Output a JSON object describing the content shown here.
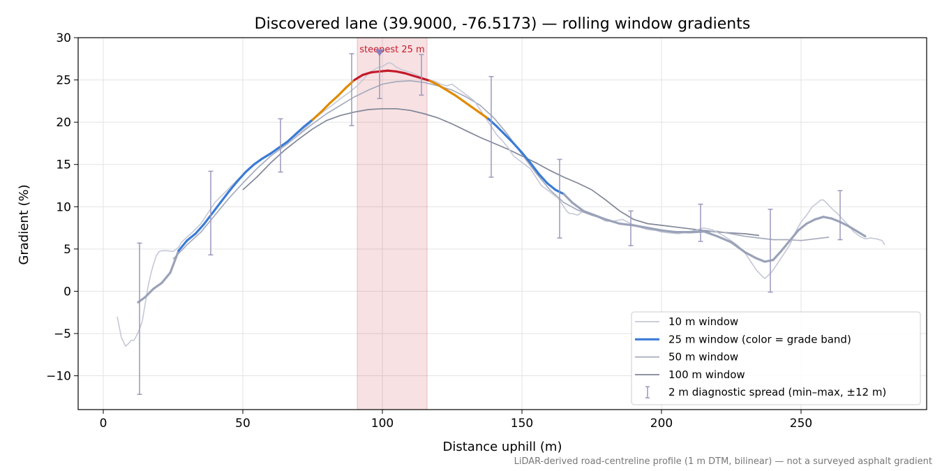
{
  "chart_data": {
    "type": "line",
    "title": "Discovered lane (39.9000, -76.5173) — rolling window gradients",
    "xlabel": "Distance uphill (m)",
    "ylabel": "Gradient (%)",
    "xlim": [
      -9,
      295
    ],
    "ylim": [
      -14,
      30
    ],
    "xticks": [
      0,
      50,
      100,
      150,
      200,
      250
    ],
    "xtick_labels": [
      "0",
      "50",
      "100",
      "150",
      "200",
      "250"
    ],
    "yticks": [
      -10,
      -5,
      0,
      5,
      10,
      15,
      20,
      25,
      30
    ],
    "ytick_labels": [
      "−10",
      "−5",
      "0",
      "5",
      "10",
      "15",
      "20",
      "25",
      "30"
    ],
    "grid": true,
    "legend_position": "lower-right",
    "highlight": {
      "x_start": 91,
      "x_end": 116,
      "label": "steepest 25 m",
      "marker_x": 99,
      "marker_y": 28.2
    },
    "footer": "LiDAR-derived road-centreline profile (1 m DTM, bilinear) — not a surveyed asphalt gradient",
    "series": [
      {
        "name": "10 m window",
        "color": "#c5c8d6",
        "x": [
          5,
          6.5,
          8,
          9,
          10,
          11,
          12,
          13,
          14,
          15,
          16,
          17,
          18,
          19,
          20,
          21,
          22,
          23,
          25,
          27,
          28,
          30,
          32,
          35,
          38,
          40,
          43,
          46,
          49,
          52,
          55,
          58,
          61,
          64,
          67,
          70,
          73,
          76,
          79,
          82,
          85,
          88,
          91,
          93,
          95,
          97,
          98,
          100,
          101,
          102,
          103,
          104,
          105,
          107,
          109,
          111,
          113,
          115,
          117,
          119,
          121,
          123,
          125,
          127,
          129,
          131,
          133,
          135,
          137,
          139,
          141,
          143,
          145,
          147,
          149,
          151,
          153,
          155,
          157,
          159,
          161,
          163,
          164,
          165,
          166,
          167,
          168,
          170,
          172,
          174,
          177,
          180,
          183,
          186,
          189,
          192,
          195,
          198,
          200,
          203,
          206,
          209,
          212,
          215,
          218,
          221,
          224,
          227,
          230,
          232,
          234,
          236,
          237,
          238,
          239,
          240,
          242,
          244,
          246,
          248,
          250,
          252,
          254,
          256,
          257,
          258,
          259,
          261,
          263,
          265,
          267,
          269,
          271,
          273,
          275,
          277,
          279,
          280
        ],
        "values": [
          -3,
          -5.5,
          -6.5,
          -6.2,
          -5.8,
          -5.8,
          -5.2,
          -4.5,
          -3.5,
          -1.5,
          0.5,
          2.0,
          3.2,
          4.2,
          4.7,
          4.8,
          4.8,
          4.8,
          4.7,
          5.2,
          5.8,
          6.4,
          7.0,
          8.0,
          9.5,
          10.5,
          11.5,
          12.5,
          13.5,
          14.5,
          15.3,
          16.0,
          16.6,
          17.2,
          17.8,
          18.6,
          19.5,
          20.5,
          21.3,
          22.0,
          22.8,
          23.5,
          24.3,
          25.0,
          25.8,
          26.2,
          26.4,
          26.6,
          26.8,
          27.0,
          27.0,
          26.8,
          26.5,
          26.2,
          26.0,
          25.8,
          25.5,
          25.2,
          25.0,
          24.8,
          24.5,
          24.3,
          24.5,
          24.0,
          23.5,
          23.0,
          22.5,
          21.5,
          20.5,
          19.5,
          18.5,
          17.8,
          17.0,
          16.0,
          15.5,
          15.0,
          14.5,
          13.5,
          12.5,
          12.0,
          11.5,
          11.0,
          10.5,
          10.0,
          9.5,
          9.2,
          9.2,
          9.0,
          9.5,
          9.3,
          8.8,
          8.3,
          8.3,
          8.5,
          8.0,
          7.6,
          7.3,
          7.2,
          7.0,
          6.9,
          6.8,
          7.0,
          7.2,
          7.5,
          7.3,
          6.8,
          6.2,
          5.5,
          4.5,
          3.5,
          2.5,
          1.8,
          1.5,
          1.8,
          2.1,
          2.5,
          3.5,
          4.5,
          5.5,
          7.0,
          8.2,
          9.0,
          10.0,
          10.5,
          10.8,
          10.8,
          10.5,
          9.8,
          9.2,
          8.5,
          7.8,
          7.0,
          6.5,
          6.2,
          6.3,
          6.2,
          6.0,
          5.5
        ],
        "width": 1.6
      },
      {
        "name": "25 m window (color = grade band)",
        "legend_color": "#3a7bd5",
        "x": [
          12.5,
          15,
          18,
          21,
          24,
          27,
          30,
          33,
          36,
          39,
          42,
          45,
          48,
          51,
          54,
          57,
          60,
          63,
          66,
          69,
          72,
          75,
          78,
          81,
          84,
          87,
          90,
          93,
          96,
          99,
          102,
          105,
          108,
          111,
          114,
          117,
          120,
          123,
          126,
          129,
          132,
          135,
          138,
          141,
          144,
          147,
          150,
          153,
          156,
          159,
          162,
          165,
          168,
          172,
          176,
          180,
          185,
          190,
          195,
          200,
          205,
          210,
          215,
          220,
          225,
          230,
          234,
          237,
          240,
          243,
          246,
          249,
          252,
          255,
          258,
          261,
          264,
          267,
          270,
          273
        ],
        "values": [
          -1.3,
          -0.7,
          0.3,
          1.0,
          2.2,
          4.8,
          6.0,
          6.8,
          7.9,
          9.2,
          10.5,
          11.8,
          13.0,
          14.1,
          15.0,
          15.7,
          16.3,
          17.0,
          17.7,
          18.6,
          19.5,
          20.3,
          21.2,
          22.2,
          23.1,
          24.1,
          25.0,
          25.6,
          25.9,
          26.0,
          26.1,
          26.0,
          25.8,
          25.5,
          25.2,
          24.9,
          24.4,
          23.8,
          23.2,
          22.5,
          21.8,
          21.1,
          20.4,
          19.5,
          18.5,
          17.5,
          16.4,
          15.2,
          13.9,
          12.8,
          12.0,
          11.5,
          10.5,
          9.5,
          9.0,
          8.5,
          8.0,
          7.8,
          7.5,
          7.2,
          7.0,
          7.0,
          7.1,
          6.5,
          5.8,
          4.6,
          3.9,
          3.5,
          3.7,
          4.8,
          6.0,
          7.2,
          8.0,
          8.5,
          8.8,
          8.6,
          8.2,
          7.7,
          7.1,
          6.5
        ],
        "bands": [
          {
            "max": 20,
            "color": "#3a7bd5"
          },
          {
            "max": 25,
            "color": "#e08a00"
          },
          {
            "max": 99,
            "color": "#c41a2a"
          }
        ],
        "muted_color": "#9aa2b8",
        "muted_ranges": [
          [
            12,
            28
          ],
          [
            165,
            280
          ]
        ],
        "width": 3.2
      },
      {
        "name": "50 m window",
        "color": "#a6abbc",
        "x": [
          25,
          30,
          35,
          40,
          45,
          50,
          55,
          60,
          65,
          70,
          75,
          80,
          85,
          90,
          95,
          100,
          105,
          110,
          115,
          120,
          125,
          130,
          135,
          140,
          145,
          150,
          155,
          160,
          165,
          170,
          175,
          180,
          185,
          190,
          195,
          200,
          205,
          210,
          215,
          220,
          225,
          230,
          235,
          240,
          245,
          250,
          255,
          260
        ],
        "values": [
          3.8,
          5.5,
          7.0,
          9.0,
          11.0,
          12.8,
          14.5,
          16.0,
          17.2,
          18.5,
          19.8,
          21.0,
          22.0,
          23.0,
          23.8,
          24.5,
          24.8,
          24.9,
          24.7,
          24.3,
          23.8,
          23.0,
          22.0,
          20.5,
          18.5,
          16.2,
          14.0,
          12.0,
          10.5,
          9.6,
          9.0,
          8.5,
          8.0,
          7.8,
          7.5,
          7.2,
          7.0,
          6.9,
          7.0,
          7.1,
          6.8,
          6.5,
          6.3,
          6.1,
          6.1,
          6.0,
          6.2,
          6.4
        ],
        "width": 1.7
      },
      {
        "name": "100 m window",
        "color": "#808697",
        "x": [
          50,
          55,
          60,
          65,
          70,
          75,
          80,
          85,
          90,
          95,
          100,
          105,
          110,
          115,
          120,
          125,
          130,
          135,
          140,
          145,
          150,
          155,
          160,
          165,
          170,
          175,
          180,
          185,
          190,
          195,
          200,
          205,
          210,
          215,
          220,
          225,
          230,
          235
        ],
        "values": [
          12.0,
          13.5,
          15.2,
          16.7,
          18.0,
          19.2,
          20.2,
          20.8,
          21.2,
          21.5,
          21.6,
          21.6,
          21.4,
          21.0,
          20.5,
          19.8,
          19.0,
          18.2,
          17.5,
          16.8,
          16.0,
          15.2,
          14.3,
          13.5,
          12.8,
          12.0,
          10.8,
          9.5,
          8.5,
          8.0,
          7.8,
          7.6,
          7.4,
          7.2,
          7.0,
          6.9,
          6.8,
          6.6
        ],
        "width": 1.7
      },
      {
        "name": "2 m diagnostic spread (min–max, ±12 m)",
        "type": "errorbar",
        "color": "#9b97bd",
        "x": [
          13,
          38.5,
          63.5,
          89,
          99,
          114,
          139,
          163.5,
          189,
          214,
          239,
          264
        ],
        "low": [
          -12.2,
          4.3,
          14.1,
          19.6,
          22.8,
          23.2,
          13.5,
          6.3,
          5.4,
          5.9,
          -0.1,
          6.1
        ],
        "high": [
          5.7,
          14.2,
          20.4,
          28.1,
          28.2,
          28.0,
          25.4,
          15.6,
          9.5,
          10.3,
          9.7,
          11.9
        ]
      }
    ]
  }
}
